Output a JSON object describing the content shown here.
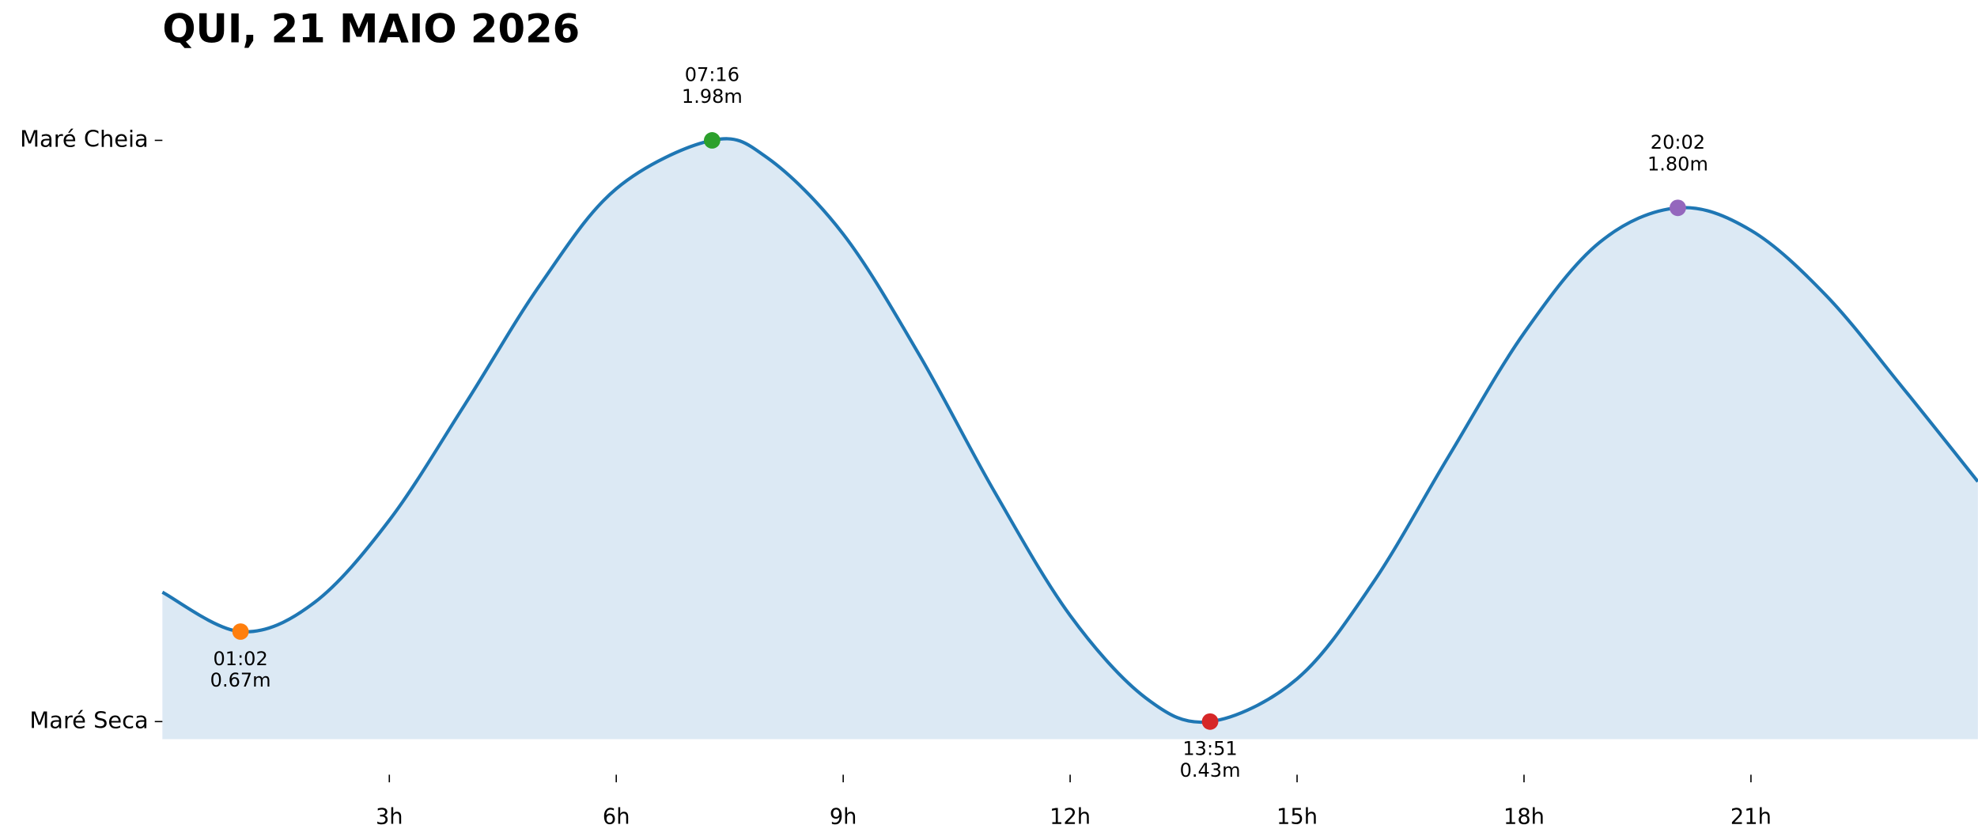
{
  "chart_data": {
    "type": "area",
    "title": "QUI, 21 MAIO 2026",
    "xlim": [
      0,
      24
    ],
    "ylim": [
      0.383,
      2.05
    ],
    "xticks": [
      {
        "value": 3,
        "label": "3h"
      },
      {
        "value": 6,
        "label": "6h"
      },
      {
        "value": 9,
        "label": "9h"
      },
      {
        "value": 12,
        "label": "12h"
      },
      {
        "value": 15,
        "label": "15h"
      },
      {
        "value": 18,
        "label": "18h"
      },
      {
        "value": 21,
        "label": "21h"
      }
    ],
    "yticks": [
      {
        "value": 1.98,
        "label": "Maré Cheia"
      },
      {
        "value": 0.43,
        "label": "Maré Seca"
      }
    ],
    "line_color": "#1f77b4",
    "fill_color": "#dce9f4",
    "x": [
      0,
      1.033,
      2,
      3,
      4,
      5,
      6,
      7.267,
      8,
      9,
      10,
      11,
      12,
      13,
      13.85,
      15,
      16,
      17,
      18,
      19,
      20.033,
      21,
      22,
      23,
      24
    ],
    "values": [
      0.775,
      0.67,
      0.746,
      0.967,
      1.276,
      1.597,
      1.851,
      1.98,
      1.933,
      1.73,
      1.41,
      1.043,
      0.713,
      0.493,
      0.43,
      0.544,
      0.799,
      1.136,
      1.466,
      1.708,
      1.8,
      1.74,
      1.565,
      1.322,
      1.07
    ],
    "points": {
      "x": [
        1.033,
        7.267,
        13.85,
        20.033
      ],
      "values": [
        0.67,
        1.98,
        0.43,
        1.8
      ],
      "value_labels": [
        "0.67m",
        "1.98m",
        "0.43m",
        "1.80m"
      ],
      "time_labels": [
        "01:02",
        "07:16",
        "13:51",
        "20:02"
      ],
      "colors": [
        "#ff7f0e",
        "#2ca02c",
        "#d62728",
        "#9467bd"
      ]
    }
  }
}
